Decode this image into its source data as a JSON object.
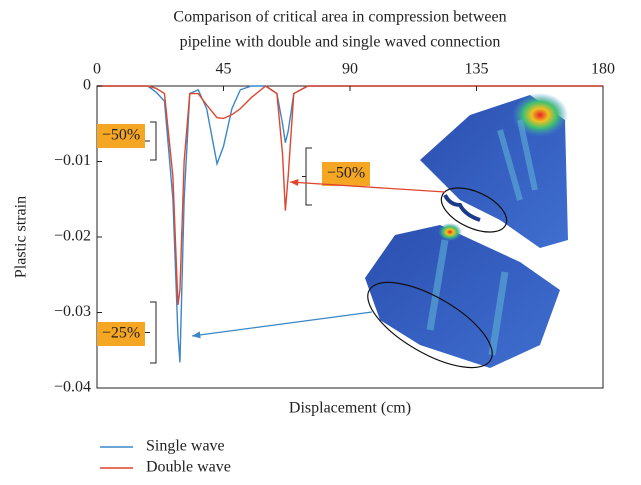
{
  "chart_data": {
    "type": "line",
    "title": [
      "Comparison of critical area in compression between",
      "pipeline with double and single waved connection"
    ],
    "x_label": "Displacement (cm)",
    "y_label": "Plastic strain",
    "x": [
      0,
      18,
      21,
      24,
      27,
      28.8,
      29.5,
      31,
      33,
      36,
      39,
      42.7,
      45,
      48,
      51,
      55,
      60,
      64,
      66,
      67,
      68,
      70,
      75,
      180
    ],
    "series": [
      {
        "name": "Single wave",
        "color": "#3a87c8",
        "values": [
          0,
          0,
          -0.0008,
          -0.002,
          -0.015,
          -0.033,
          -0.0366,
          -0.015,
          -0.001,
          -0.0005,
          -0.003,
          -0.0103,
          -0.008,
          -0.003,
          -0.0005,
          0,
          0,
          -0.001,
          -0.005,
          -0.0075,
          -0.006,
          -0.001,
          0,
          0
        ]
      },
      {
        "name": "Double wave",
        "color": "#e0452d",
        "values": [
          0,
          0,
          -0.0003,
          -0.001,
          -0.012,
          -0.029,
          -0.027,
          -0.01,
          -0.001,
          -0.001,
          -0.0025,
          -0.0042,
          -0.0043,
          -0.0038,
          -0.003,
          -0.0015,
          0,
          -0.001,
          -0.009,
          -0.0165,
          -0.012,
          -0.001,
          0,
          0
        ]
      }
    ],
    "xlim": [
      0,
      180
    ],
    "xticks": [
      0,
      45,
      90,
      135,
      180
    ],
    "ylim": [
      -0.04,
      0
    ],
    "yticks": [
      {
        "value": -0.04,
        "label": "−0.04"
      },
      {
        "value": -0.03,
        "label": "−0.03"
      },
      {
        "value": -0.02,
        "label": "−0.02"
      },
      {
        "value": -0.01,
        "label": "−0.01"
      },
      0
    ],
    "annotations": [
      "−50%",
      "−50%",
      "−25%"
    ],
    "annotation_color": "#f5a623"
  }
}
